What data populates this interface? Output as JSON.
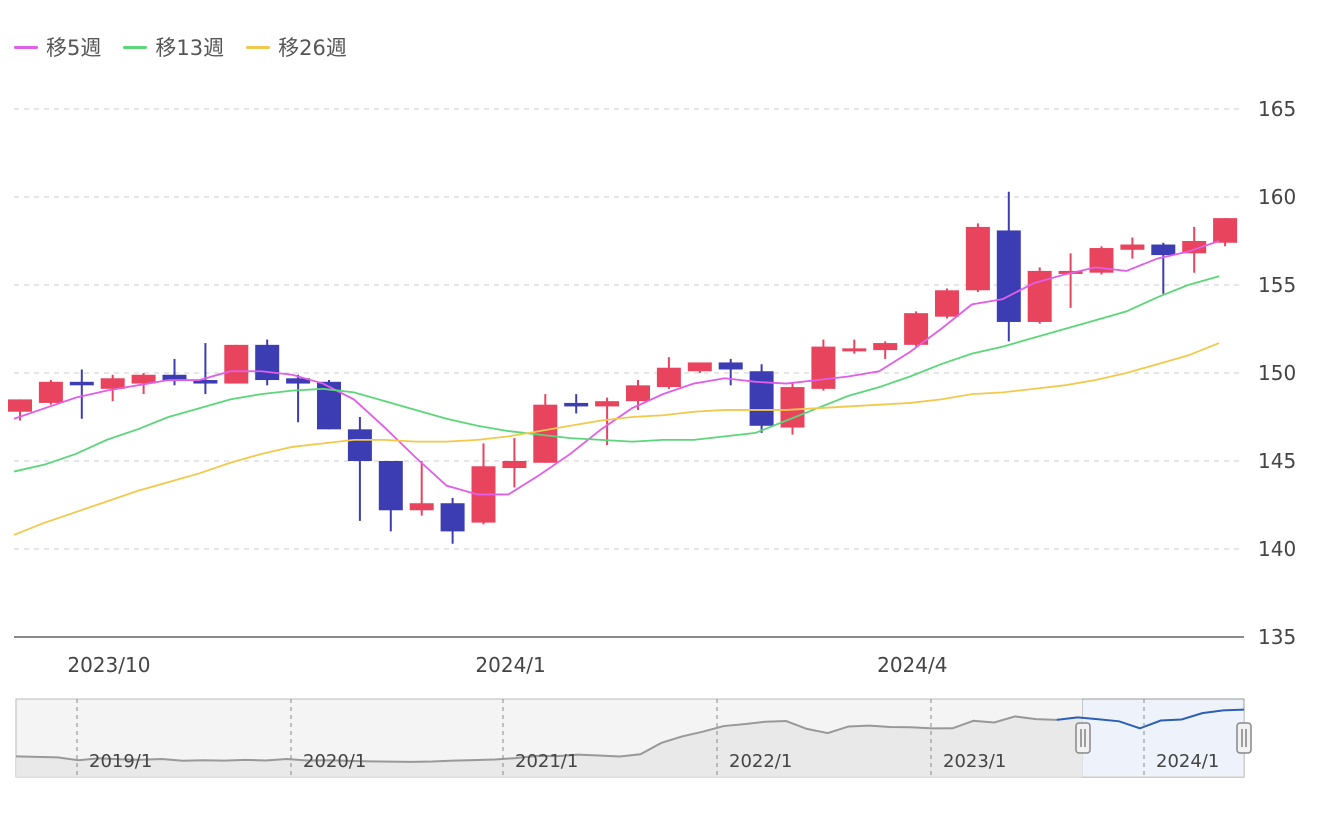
{
  "legend": {
    "items": [
      {
        "label": "移5週",
        "color": "#e05ee8"
      },
      {
        "label": "移13週",
        "color": "#5cd67a"
      },
      {
        "label": "移26週",
        "color": "#f2c94c"
      }
    ]
  },
  "colors": {
    "up": "#e8445e",
    "down": "#3d3db3",
    "grid": "#cccccc",
    "navigator_line": "#999999",
    "navigator_selected_line": "#2d5fb5",
    "navigator_selected_bg": "#eef3fb"
  },
  "chart_data": {
    "type": "candlestick",
    "y_axis": {
      "min": 135,
      "max": 165,
      "ticks": [
        135,
        140,
        145,
        150,
        155,
        160,
        165
      ],
      "position": "right"
    },
    "x_tick_labels": [
      {
        "label": "2023/10",
        "index": 1
      },
      {
        "label": "2024/1",
        "index": 14
      },
      {
        "label": "2024/4",
        "index": 27
      }
    ],
    "candles": [
      {
        "o": 147.8,
        "h": 148.5,
        "l": 147.3,
        "c": 148.5
      },
      {
        "o": 148.3,
        "h": 149.6,
        "l": 148.2,
        "c": 149.5
      },
      {
        "o": 149.5,
        "h": 150.2,
        "l": 147.4,
        "c": 149.3
      },
      {
        "o": 149.1,
        "h": 149.9,
        "l": 148.4,
        "c": 149.7
      },
      {
        "o": 149.4,
        "h": 150.0,
        "l": 148.8,
        "c": 149.9
      },
      {
        "o": 149.9,
        "h": 150.8,
        "l": 149.3,
        "c": 149.6
      },
      {
        "o": 149.6,
        "h": 151.7,
        "l": 148.8,
        "c": 149.4
      },
      {
        "o": 149.4,
        "h": 151.6,
        "l": 149.4,
        "c": 151.6
      },
      {
        "o": 151.6,
        "h": 151.9,
        "l": 149.3,
        "c": 149.6
      },
      {
        "o": 149.7,
        "h": 149.9,
        "l": 147.2,
        "c": 149.4
      },
      {
        "o": 149.5,
        "h": 149.6,
        "l": 146.8,
        "c": 146.8
      },
      {
        "o": 146.8,
        "h": 147.5,
        "l": 141.6,
        "c": 145.0
      },
      {
        "o": 145.0,
        "h": 145.0,
        "l": 141.0,
        "c": 142.2
      },
      {
        "o": 142.2,
        "h": 145.0,
        "l": 141.9,
        "c": 142.6
      },
      {
        "o": 142.6,
        "h": 142.9,
        "l": 140.3,
        "c": 141.0
      },
      {
        "o": 141.5,
        "h": 146.0,
        "l": 141.4,
        "c": 144.7
      },
      {
        "o": 144.6,
        "h": 146.3,
        "l": 143.5,
        "c": 145.0
      },
      {
        "o": 144.9,
        "h": 148.8,
        "l": 144.9,
        "c": 148.2
      },
      {
        "o": 148.3,
        "h": 148.8,
        "l": 147.7,
        "c": 148.1
      },
      {
        "o": 148.1,
        "h": 148.6,
        "l": 145.9,
        "c": 148.4
      },
      {
        "o": 148.4,
        "h": 149.6,
        "l": 147.9,
        "c": 149.3
      },
      {
        "o": 149.2,
        "h": 150.9,
        "l": 149.1,
        "c": 150.3
      },
      {
        "o": 150.1,
        "h": 150.6,
        "l": 150.0,
        "c": 150.6
      },
      {
        "o": 150.6,
        "h": 150.8,
        "l": 149.3,
        "c": 150.2
      },
      {
        "o": 150.1,
        "h": 150.5,
        "l": 146.6,
        "c": 147.0
      },
      {
        "o": 146.9,
        "h": 149.4,
        "l": 146.5,
        "c": 149.2
      },
      {
        "o": 149.1,
        "h": 151.9,
        "l": 149.0,
        "c": 151.5
      },
      {
        "o": 151.4,
        "h": 151.9,
        "l": 151.1,
        "c": 151.4
      },
      {
        "o": 151.3,
        "h": 151.8,
        "l": 150.8,
        "c": 151.7
      },
      {
        "o": 151.6,
        "h": 153.5,
        "l": 151.5,
        "c": 153.4
      },
      {
        "o": 153.2,
        "h": 154.8,
        "l": 153.1,
        "c": 154.7
      },
      {
        "o": 154.7,
        "h": 158.5,
        "l": 154.6,
        "c": 158.3
      },
      {
        "o": 158.1,
        "h": 160.3,
        "l": 151.8,
        "c": 152.9
      },
      {
        "o": 152.9,
        "h": 156.0,
        "l": 152.8,
        "c": 155.8
      },
      {
        "o": 155.7,
        "h": 156.8,
        "l": 153.7,
        "c": 155.8
      },
      {
        "o": 155.7,
        "h": 157.2,
        "l": 155.6,
        "c": 157.1
      },
      {
        "o": 157.0,
        "h": 157.7,
        "l": 156.5,
        "c": 157.3
      },
      {
        "o": 157.3,
        "h": 157.4,
        "l": 154.5,
        "c": 156.7
      },
      {
        "o": 156.8,
        "h": 158.3,
        "l": 155.7,
        "c": 157.5
      },
      {
        "o": 157.4,
        "h": 158.8,
        "l": 157.2,
        "c": 158.8
      }
    ],
    "series": [
      {
        "name": "移5週",
        "values": [
          147.4,
          148.0,
          148.6,
          149.0,
          149.3,
          149.6,
          149.6,
          150.1,
          150.1,
          149.9,
          149.4,
          148.5,
          146.9,
          145.2,
          143.6,
          143.1,
          143.1,
          144.2,
          145.4,
          146.8,
          148.0,
          148.8,
          149.4,
          149.7,
          149.5,
          149.4,
          149.6,
          149.8,
          150.1,
          151.2,
          152.5,
          153.9,
          154.2,
          155.1,
          155.6,
          156.0,
          155.8,
          156.5,
          156.9,
          157.5
        ]
      },
      {
        "name": "移13週",
        "values": [
          144.4,
          144.8,
          145.4,
          146.2,
          146.8,
          147.5,
          148.0,
          148.5,
          148.8,
          149.0,
          149.1,
          148.9,
          148.4,
          147.9,
          147.4,
          147.0,
          146.7,
          146.5,
          146.3,
          146.2,
          146.1,
          146.2,
          146.2,
          146.4,
          146.6,
          147.3,
          148.0,
          148.7,
          149.2,
          149.8,
          150.5,
          151.1,
          151.5,
          152.0,
          152.5,
          153.0,
          153.5,
          154.3,
          155.0,
          155.5
        ]
      },
      {
        "name": "移26週",
        "values": [
          140.8,
          141.5,
          142.1,
          142.7,
          143.3,
          143.8,
          144.3,
          144.9,
          145.4,
          145.8,
          146.0,
          146.2,
          146.2,
          146.1,
          146.1,
          146.2,
          146.4,
          146.7,
          147.0,
          147.3,
          147.5,
          147.6,
          147.8,
          147.9,
          147.9,
          147.9,
          148.0,
          148.1,
          148.2,
          148.3,
          148.5,
          148.8,
          148.9,
          149.1,
          149.3,
          149.6,
          150.0,
          150.5,
          151.0,
          151.7
        ]
      }
    ],
    "navigator": {
      "tick_labels": [
        "2019/1",
        "2020/1",
        "2021/1",
        "2022/1",
        "2023/1",
        "2024/1"
      ],
      "values": [
        113,
        112.5,
        112,
        109,
        111,
        110,
        109.5,
        110.3,
        108.5,
        109,
        108.6,
        109.4,
        108.8,
        110.3,
        108.7,
        109,
        108.4,
        107.8,
        107.6,
        107.3,
        107.7,
        108.6,
        109.1,
        109.8,
        111.2,
        113.5,
        113.2,
        114.8,
        113.9,
        112.9,
        115.2,
        126.8,
        133.5,
        138.4,
        144.2,
        146.2,
        148.6,
        149.4,
        141.3,
        137,
        143.8,
        144.6,
        143.2,
        143,
        141.8,
        141.9,
        149.6,
        147.9,
        154.1,
        151.4,
        150.6,
        153.1,
        151.2,
        149.1,
        141.9,
        149.9,
        151,
        157.5,
        160.3,
        161.1
      ],
      "selected_start_index": 50
    }
  }
}
